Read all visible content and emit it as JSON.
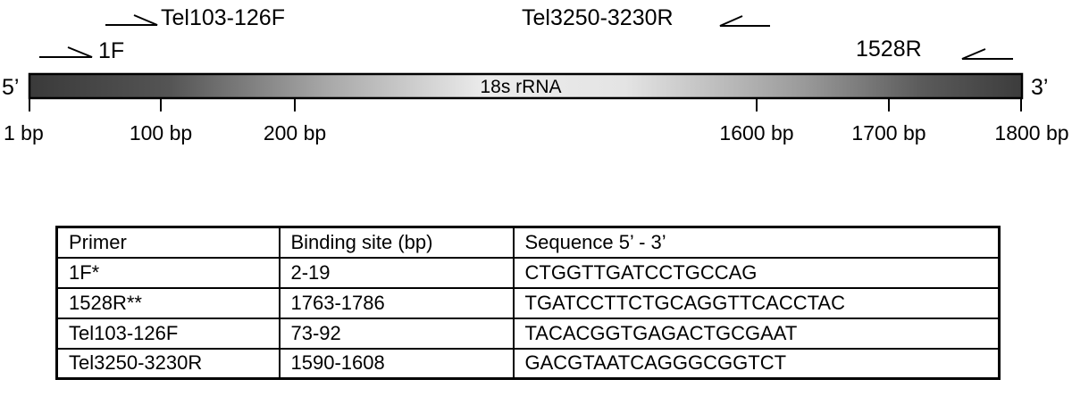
{
  "gene": {
    "bar_label": "18s rRNA",
    "end_left": "5’",
    "end_right": "3’",
    "length_bp": 1800
  },
  "ticks": [
    {
      "bp": 1,
      "label": "1 bp"
    },
    {
      "bp": 100,
      "label": "100 bp"
    },
    {
      "bp": 200,
      "label": "200 bp"
    },
    {
      "bp": 1600,
      "label": "1600 bp"
    },
    {
      "bp": 1700,
      "label": "1700 bp"
    },
    {
      "bp": 1800,
      "label": "1800 bp"
    }
  ],
  "primers": [
    {
      "label": "Tel103-126F",
      "direction": "forward"
    },
    {
      "label": "1F",
      "direction": "forward"
    },
    {
      "label": "Tel3250-3230R",
      "direction": "reverse"
    },
    {
      "label": "1528R",
      "direction": "reverse"
    }
  ],
  "table": {
    "headers": [
      "Primer",
      "Binding site (bp)",
      "Sequence 5’ - 3’"
    ],
    "rows": [
      [
        "1F*",
        "2-19",
        "CTGGTTGATCCTGCCAG"
      ],
      [
        "1528R**",
        "1763-1786",
        "TGATCCTTCTGCAGGTTCACCTAC"
      ],
      [
        "Tel103-126F",
        "73-92",
        "TACACGGTGAGACTGCGAAT"
      ],
      [
        "Tel3250-3230R",
        "1590-1608",
        "GACGTAATCAGGGCGGTCT"
      ]
    ]
  },
  "colors": {
    "bar_dark": "#3a3a3a",
    "bar_light": "#ececec",
    "line": "#000000"
  }
}
